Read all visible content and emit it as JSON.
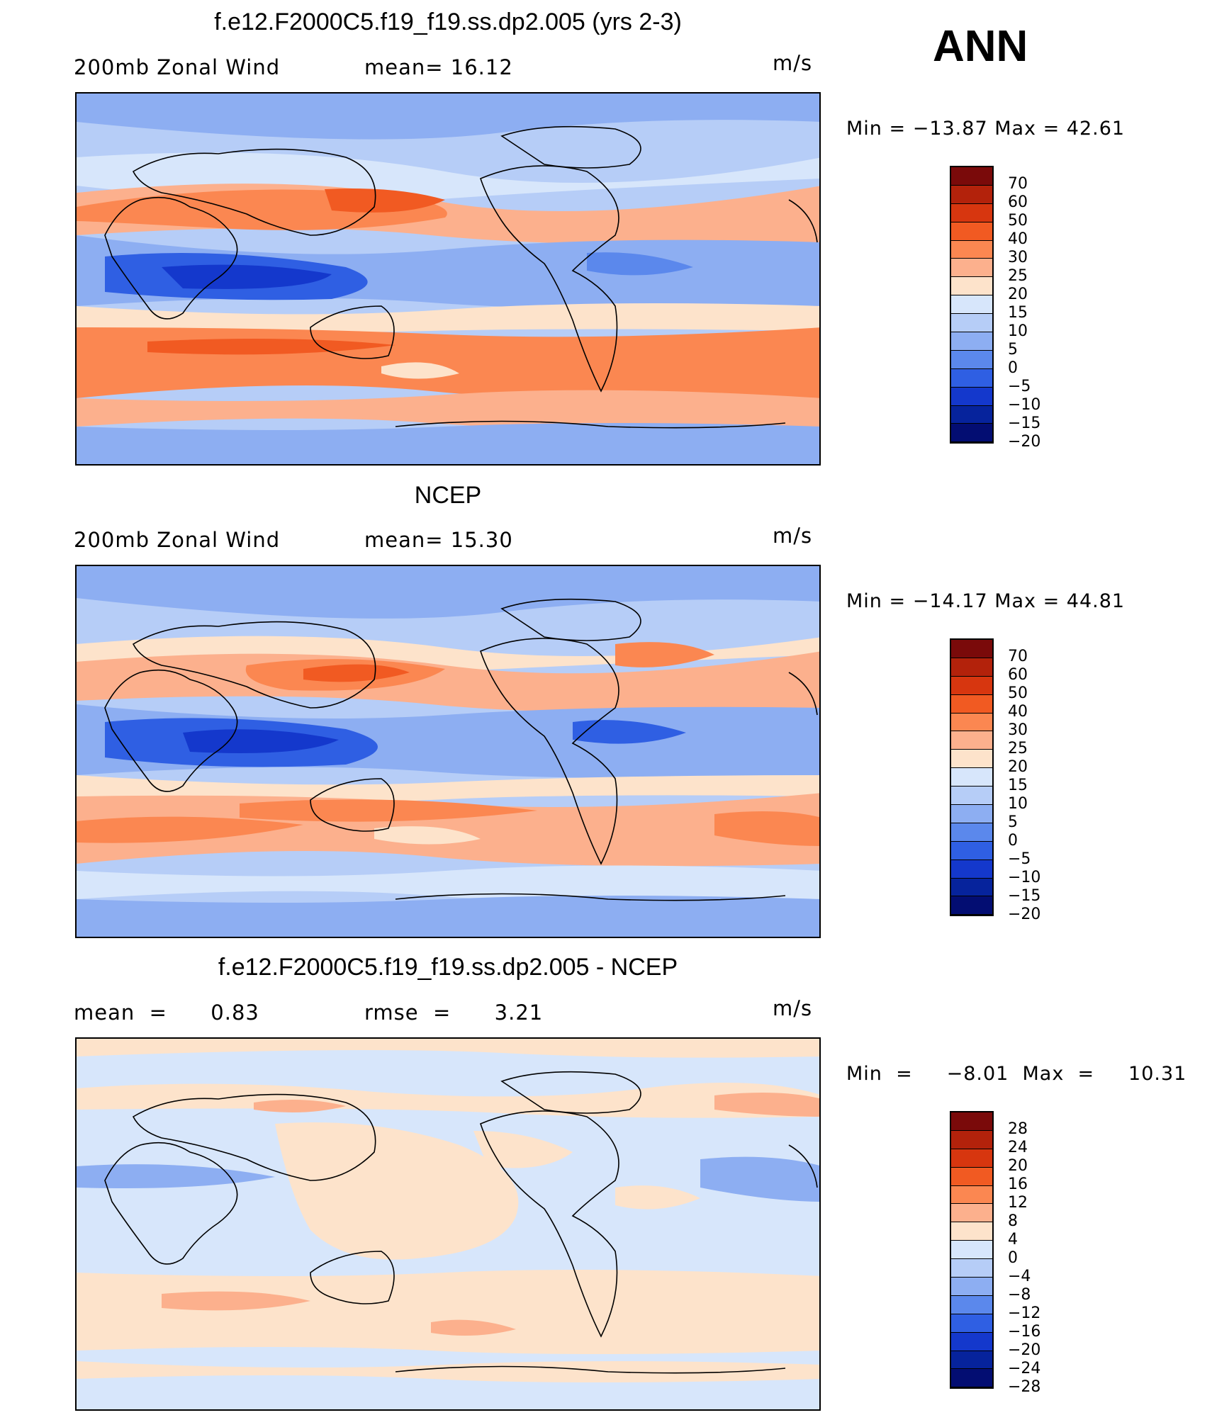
{
  "season": "ANN",
  "units": "m/s",
  "panels": [
    {
      "title": "f.e12.F2000C5.f19_f19.ss.dp2.005 (yrs 2-3)",
      "left_label": "200mb Zonal Wind",
      "mid_label": "mean=   16.12",
      "units": "m/s",
      "minmax": "Min  =  −13.87  Max  =     42.61",
      "colorbar": {
        "colors": [
          "#7a0a0a",
          "#b3220b",
          "#d7360f",
          "#f15a22",
          "#fb8751",
          "#fcb08d",
          "#fde3cb",
          "#d7e6fb",
          "#b6cdf7",
          "#8daef2",
          "#5b88ec",
          "#2f5fe3",
          "#1438cc",
          "#06239c",
          "#030d72"
        ],
        "labels": [
          "70",
          "60",
          "50",
          "40",
          "30",
          "25",
          "20",
          "15",
          "10",
          "5",
          "0",
          "−5",
          "−10",
          "−15",
          "−20"
        ]
      }
    },
    {
      "title": "NCEP",
      "left_label": "200mb Zonal Wind",
      "mid_label": "mean=   15.30",
      "units": "m/s",
      "minmax": "Min  =  −14.17  Max  =     44.81",
      "colorbar": {
        "colors": [
          "#7a0a0a",
          "#b3220b",
          "#d7360f",
          "#f15a22",
          "#fb8751",
          "#fcb08d",
          "#fde3cb",
          "#d7e6fb",
          "#b6cdf7",
          "#8daef2",
          "#5b88ec",
          "#2f5fe3",
          "#1438cc",
          "#06239c",
          "#030d72"
        ],
        "labels": [
          "70",
          "60",
          "50",
          "40",
          "30",
          "25",
          "20",
          "15",
          "10",
          "5",
          "0",
          "−5",
          "−10",
          "−15",
          "−20"
        ]
      }
    },
    {
      "title": "f.e12.F2000C5.f19_f19.ss.dp2.005 - NCEP",
      "left_label": "mean  =      0.83",
      "mid_label": "rmse  =      3.21",
      "units": "m/s",
      "minmax": "Min  =     −8.01  Max  =     10.31",
      "colorbar": {
        "colors": [
          "#7a0a0a",
          "#b3220b",
          "#d7360f",
          "#f15a22",
          "#fb8751",
          "#fcb08d",
          "#fde3cb",
          "#d7e6fb",
          "#b6cdf7",
          "#8daef2",
          "#5b88ec",
          "#2f5fe3",
          "#1438cc",
          "#06239c",
          "#030d72"
        ],
        "labels": [
          "28",
          "24",
          "20",
          "16",
          "12",
          "8",
          "4",
          "0",
          "−4",
          "−8",
          "−12",
          "−16",
          "−20",
          "−24",
          "−28"
        ]
      }
    }
  ]
}
